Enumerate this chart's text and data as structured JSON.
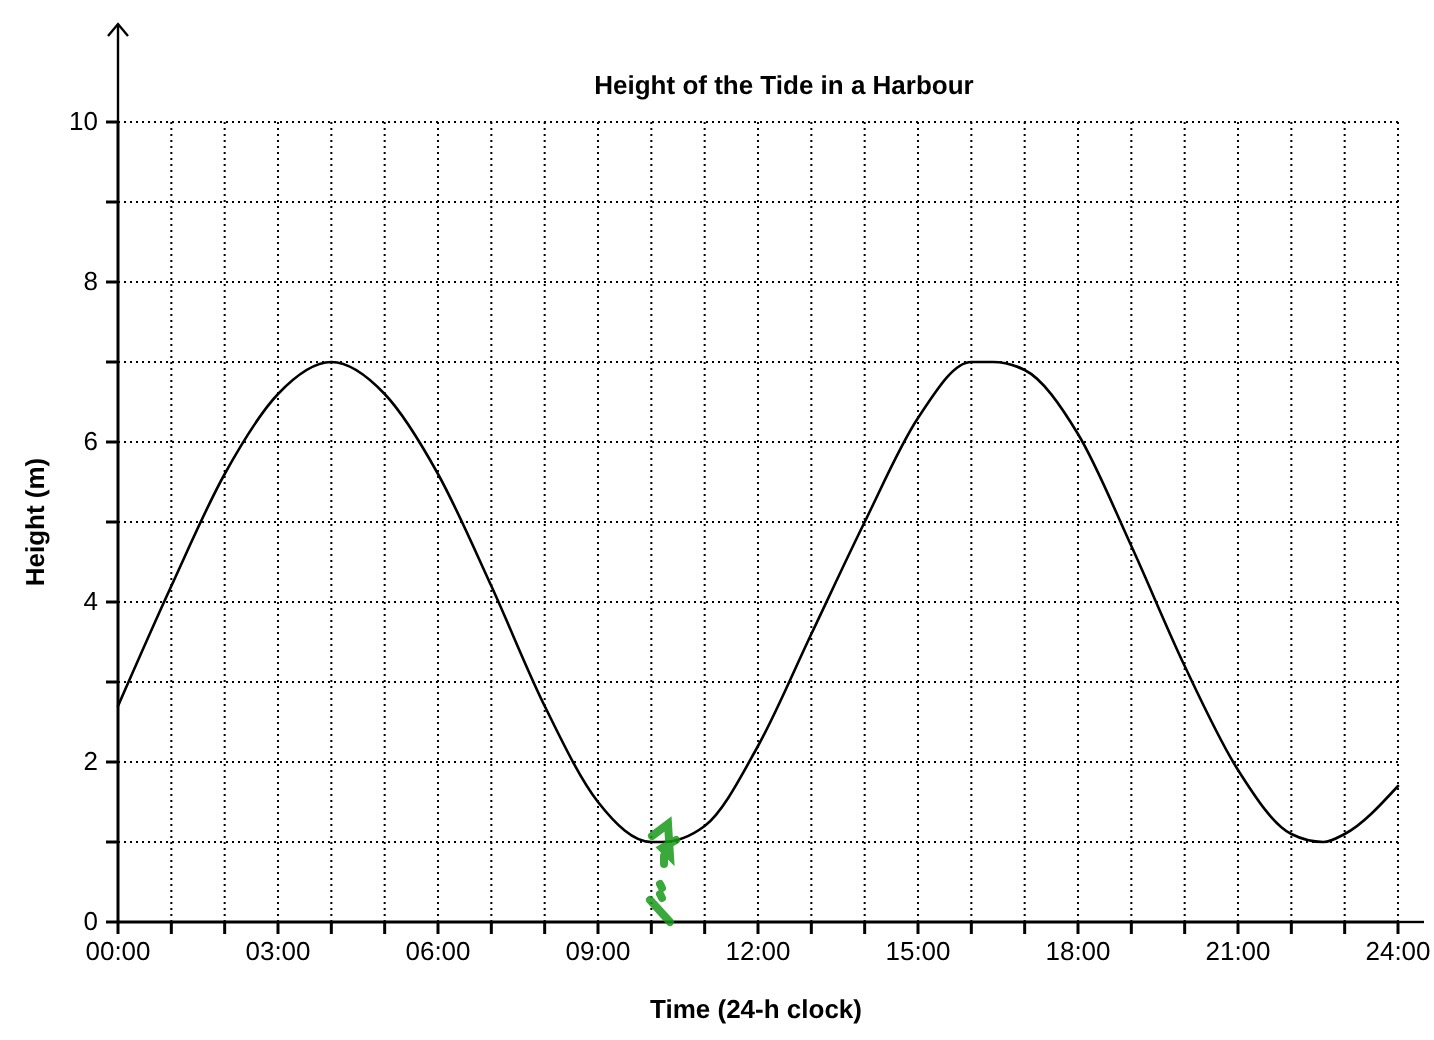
{
  "chart_data": {
    "type": "line",
    "title": "Height of the Tide in a Harbour",
    "xlabel": "Time (24-h clock)",
    "ylabel": "Height (m)",
    "x": [
      0,
      1,
      2,
      3,
      4,
      5,
      6,
      7,
      8,
      9,
      10,
      10.2,
      11,
      12,
      13,
      14,
      15,
      16,
      16.4,
      17,
      18,
      19,
      20,
      21,
      22,
      22.6,
      23,
      24
    ],
    "series": [
      {
        "color": "#000000",
        "values": [
          2.7,
          4.2,
          5.6,
          6.6,
          7,
          6.6,
          5.6,
          4.2,
          2.7,
          1.5,
          1.0,
          1,
          1.2,
          2.2,
          3.6,
          5.0,
          6.3,
          7.0,
          7,
          6.9,
          6.1,
          4.7,
          3.2,
          1.9,
          1.1,
          1,
          1.1,
          1.7
        ]
      }
    ],
    "xlim": [
      0,
      24
    ],
    "ylim": [
      0,
      10
    ],
    "xticks": [
      {
        "value": 0,
        "label": "00:00"
      },
      {
        "value": 1,
        "label": null
      },
      {
        "value": 2,
        "label": null
      },
      {
        "value": 3,
        "label": "03:00"
      },
      {
        "value": 4,
        "label": null
      },
      {
        "value": 5,
        "label": null
      },
      {
        "value": 6,
        "label": "06:00"
      },
      {
        "value": 7,
        "label": null
      },
      {
        "value": 8,
        "label": null
      },
      {
        "value": 9,
        "label": "09:00"
      },
      {
        "value": 10,
        "label": null
      },
      {
        "value": 11,
        "label": null
      },
      {
        "value": 12,
        "label": "12:00"
      },
      {
        "value": 13,
        "label": null
      },
      {
        "value": 14,
        "label": null
      },
      {
        "value": 15,
        "label": "15:00"
      },
      {
        "value": 16,
        "label": null
      },
      {
        "value": 17,
        "label": null
      },
      {
        "value": 18,
        "label": "18:00"
      },
      {
        "value": 19,
        "label": null
      },
      {
        "value": 20,
        "label": null
      },
      {
        "value": 21,
        "label": "21:00"
      },
      {
        "value": 22,
        "label": null
      },
      {
        "value": 23,
        "label": null
      },
      {
        "value": 24,
        "label": "24:00"
      }
    ],
    "yticks": [
      0,
      {
        "value": 1,
        "label": null
      },
      2,
      {
        "value": 3,
        "label": null
      },
      4,
      {
        "value": 5,
        "label": null
      },
      6,
      {
        "value": 7,
        "label": null
      },
      8,
      {
        "value": 9,
        "label": null
      },
      10
    ],
    "grid": true
  }
}
